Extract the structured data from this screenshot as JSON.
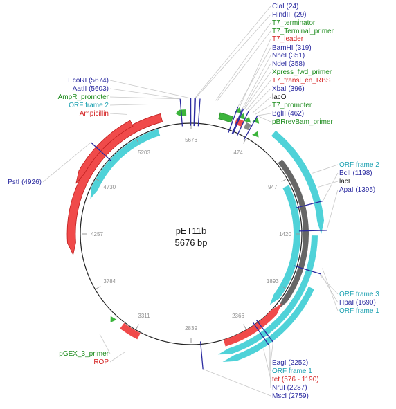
{
  "plasmid": {
    "name": "pET11b",
    "length_label": "5676 bp",
    "length": 5676
  },
  "colors": {
    "site": "#2a2aa0",
    "primer": "#1a8a1a",
    "promoter": "#1a8a1a",
    "feature": "#d42020",
    "orf": "#1aa0b0",
    "orf_fill": "#4fd2d8",
    "gene_fill": "#f04a4a",
    "lac_fill": "#666666",
    "backbone": "#222222",
    "connector": "#c8c8c8"
  },
  "ticks": [
    {
      "pos": 0,
      "label": "5676"
    },
    {
      "pos": 473,
      "label": "474"
    },
    {
      "pos": 946,
      "label": "947"
    },
    {
      "pos": 1419,
      "label": "1420"
    },
    {
      "pos": 1892,
      "label": "1893"
    },
    {
      "pos": 2365,
      "label": "2366"
    },
    {
      "pos": 2838,
      "label": "2839"
    },
    {
      "pos": 3311,
      "label": "3311"
    },
    {
      "pos": 3784,
      "label": "3784"
    },
    {
      "pos": 4257,
      "label": "4257"
    },
    {
      "pos": 4730,
      "label": "4730"
    },
    {
      "pos": 5203,
      "label": "5203"
    }
  ],
  "labels": [
    {
      "text": "ClaI (24)",
      "type": "site"
    },
    {
      "text": "HindIII (29)",
      "type": "site"
    },
    {
      "text": "T7_terminator",
      "type": "primer"
    },
    {
      "text": "T7_Terminal_primer",
      "type": "primer"
    },
    {
      "text": "BamHI (319)",
      "type": "site"
    },
    {
      "text": "T7_leader",
      "type": "feature"
    },
    {
      "text": "NheI (351)",
      "type": "site"
    },
    {
      "text": "NdeI (358)",
      "type": "site"
    },
    {
      "text": "Xpress_fwd_primer",
      "type": "primer"
    },
    {
      "text": "T7_transl_en_RBS",
      "type": "feature"
    },
    {
      "text": "XbaI (396)",
      "type": "site"
    },
    {
      "text": "lacO",
      "type": "plain"
    },
    {
      "text": "T7_promoter",
      "type": "primer"
    },
    {
      "text": "BglII (462)",
      "type": "site"
    },
    {
      "text": "pBRrevBam_primer",
      "type": "primer"
    },
    {
      "text": "EcoRI (5674)",
      "type": "site"
    },
    {
      "text": "AatII (5603)",
      "type": "site"
    },
    {
      "text": "AmpR_promoter",
      "type": "primer"
    },
    {
      "text": "ORF frame 2",
      "type": "orf"
    },
    {
      "text": "Ampicillin",
      "type": "feature"
    },
    {
      "text": "PstI (4926)",
      "type": "site"
    },
    {
      "text": "ORF frame 2",
      "type": "orf"
    },
    {
      "text": "BclI (1198)",
      "type": "site"
    },
    {
      "text": "lacI",
      "type": "plain"
    },
    {
      "text": "ApaI (1395)",
      "type": "site"
    },
    {
      "text": "ORF frame 3",
      "type": "orf"
    },
    {
      "text": "HpaI (1690)",
      "type": "site"
    },
    {
      "text": "ORF frame 1",
      "type": "orf"
    },
    {
      "text": "pGEX_3_primer",
      "type": "primer"
    },
    {
      "text": "ROP",
      "type": "feature"
    },
    {
      "text": "EagI (2252)",
      "type": "site"
    },
    {
      "text": "ORF frame 1",
      "type": "orf"
    },
    {
      "text": "tet (576 - 1190)",
      "type": "feature"
    },
    {
      "text": "NruI (2287)",
      "type": "site"
    },
    {
      "text": "MscI (2759)",
      "type": "site"
    }
  ]
}
